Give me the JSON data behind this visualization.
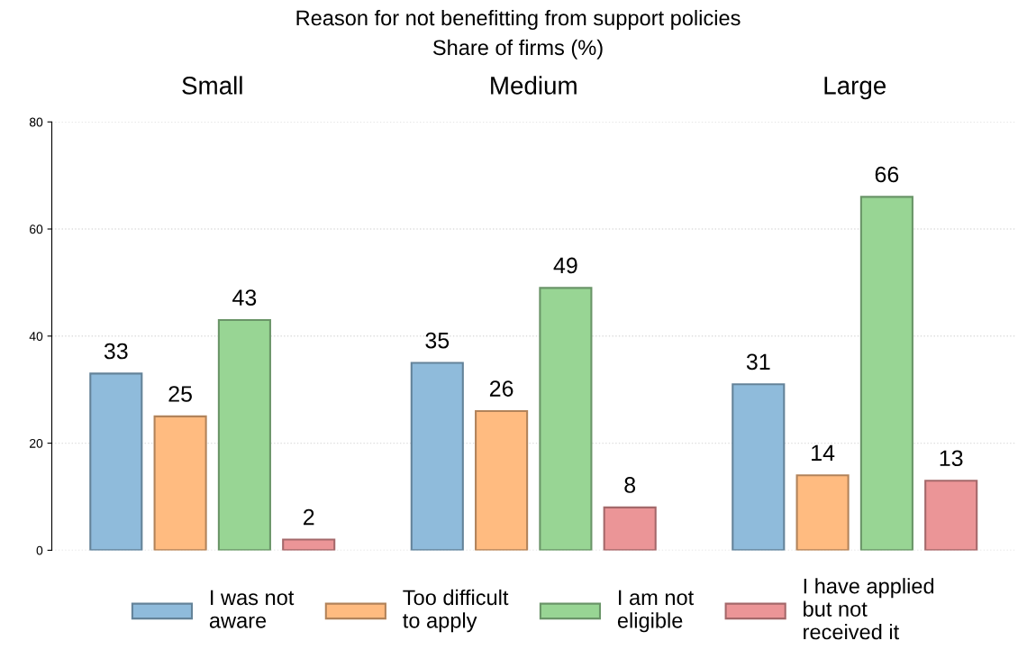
{
  "chart_data": {
    "type": "bar",
    "title": "Reason for not benefitting from support policies",
    "subtitle": "Share of firms (%)",
    "categories": [
      "Small",
      "Medium",
      "Large"
    ],
    "series": [
      {
        "name": "I was not\naware",
        "color": "#8fbbdb",
        "values": [
          33,
          35,
          31
        ]
      },
      {
        "name": "Too difficult\nto apply",
        "color": "#ffbb80",
        "values": [
          25,
          26,
          14
        ]
      },
      {
        "name": "I am not\neligible",
        "color": "#98d594",
        "values": [
          43,
          49,
          66
        ]
      },
      {
        "name": "I have applied\nbut not\nreceived it",
        "color": "#eb9597",
        "values": [
          2,
          8,
          13
        ]
      }
    ],
    "ylim": [
      0,
      80
    ],
    "yticks": [
      0,
      20,
      40,
      60,
      80
    ],
    "grid": "y",
    "legend": "bottom",
    "data_labels": true
  }
}
